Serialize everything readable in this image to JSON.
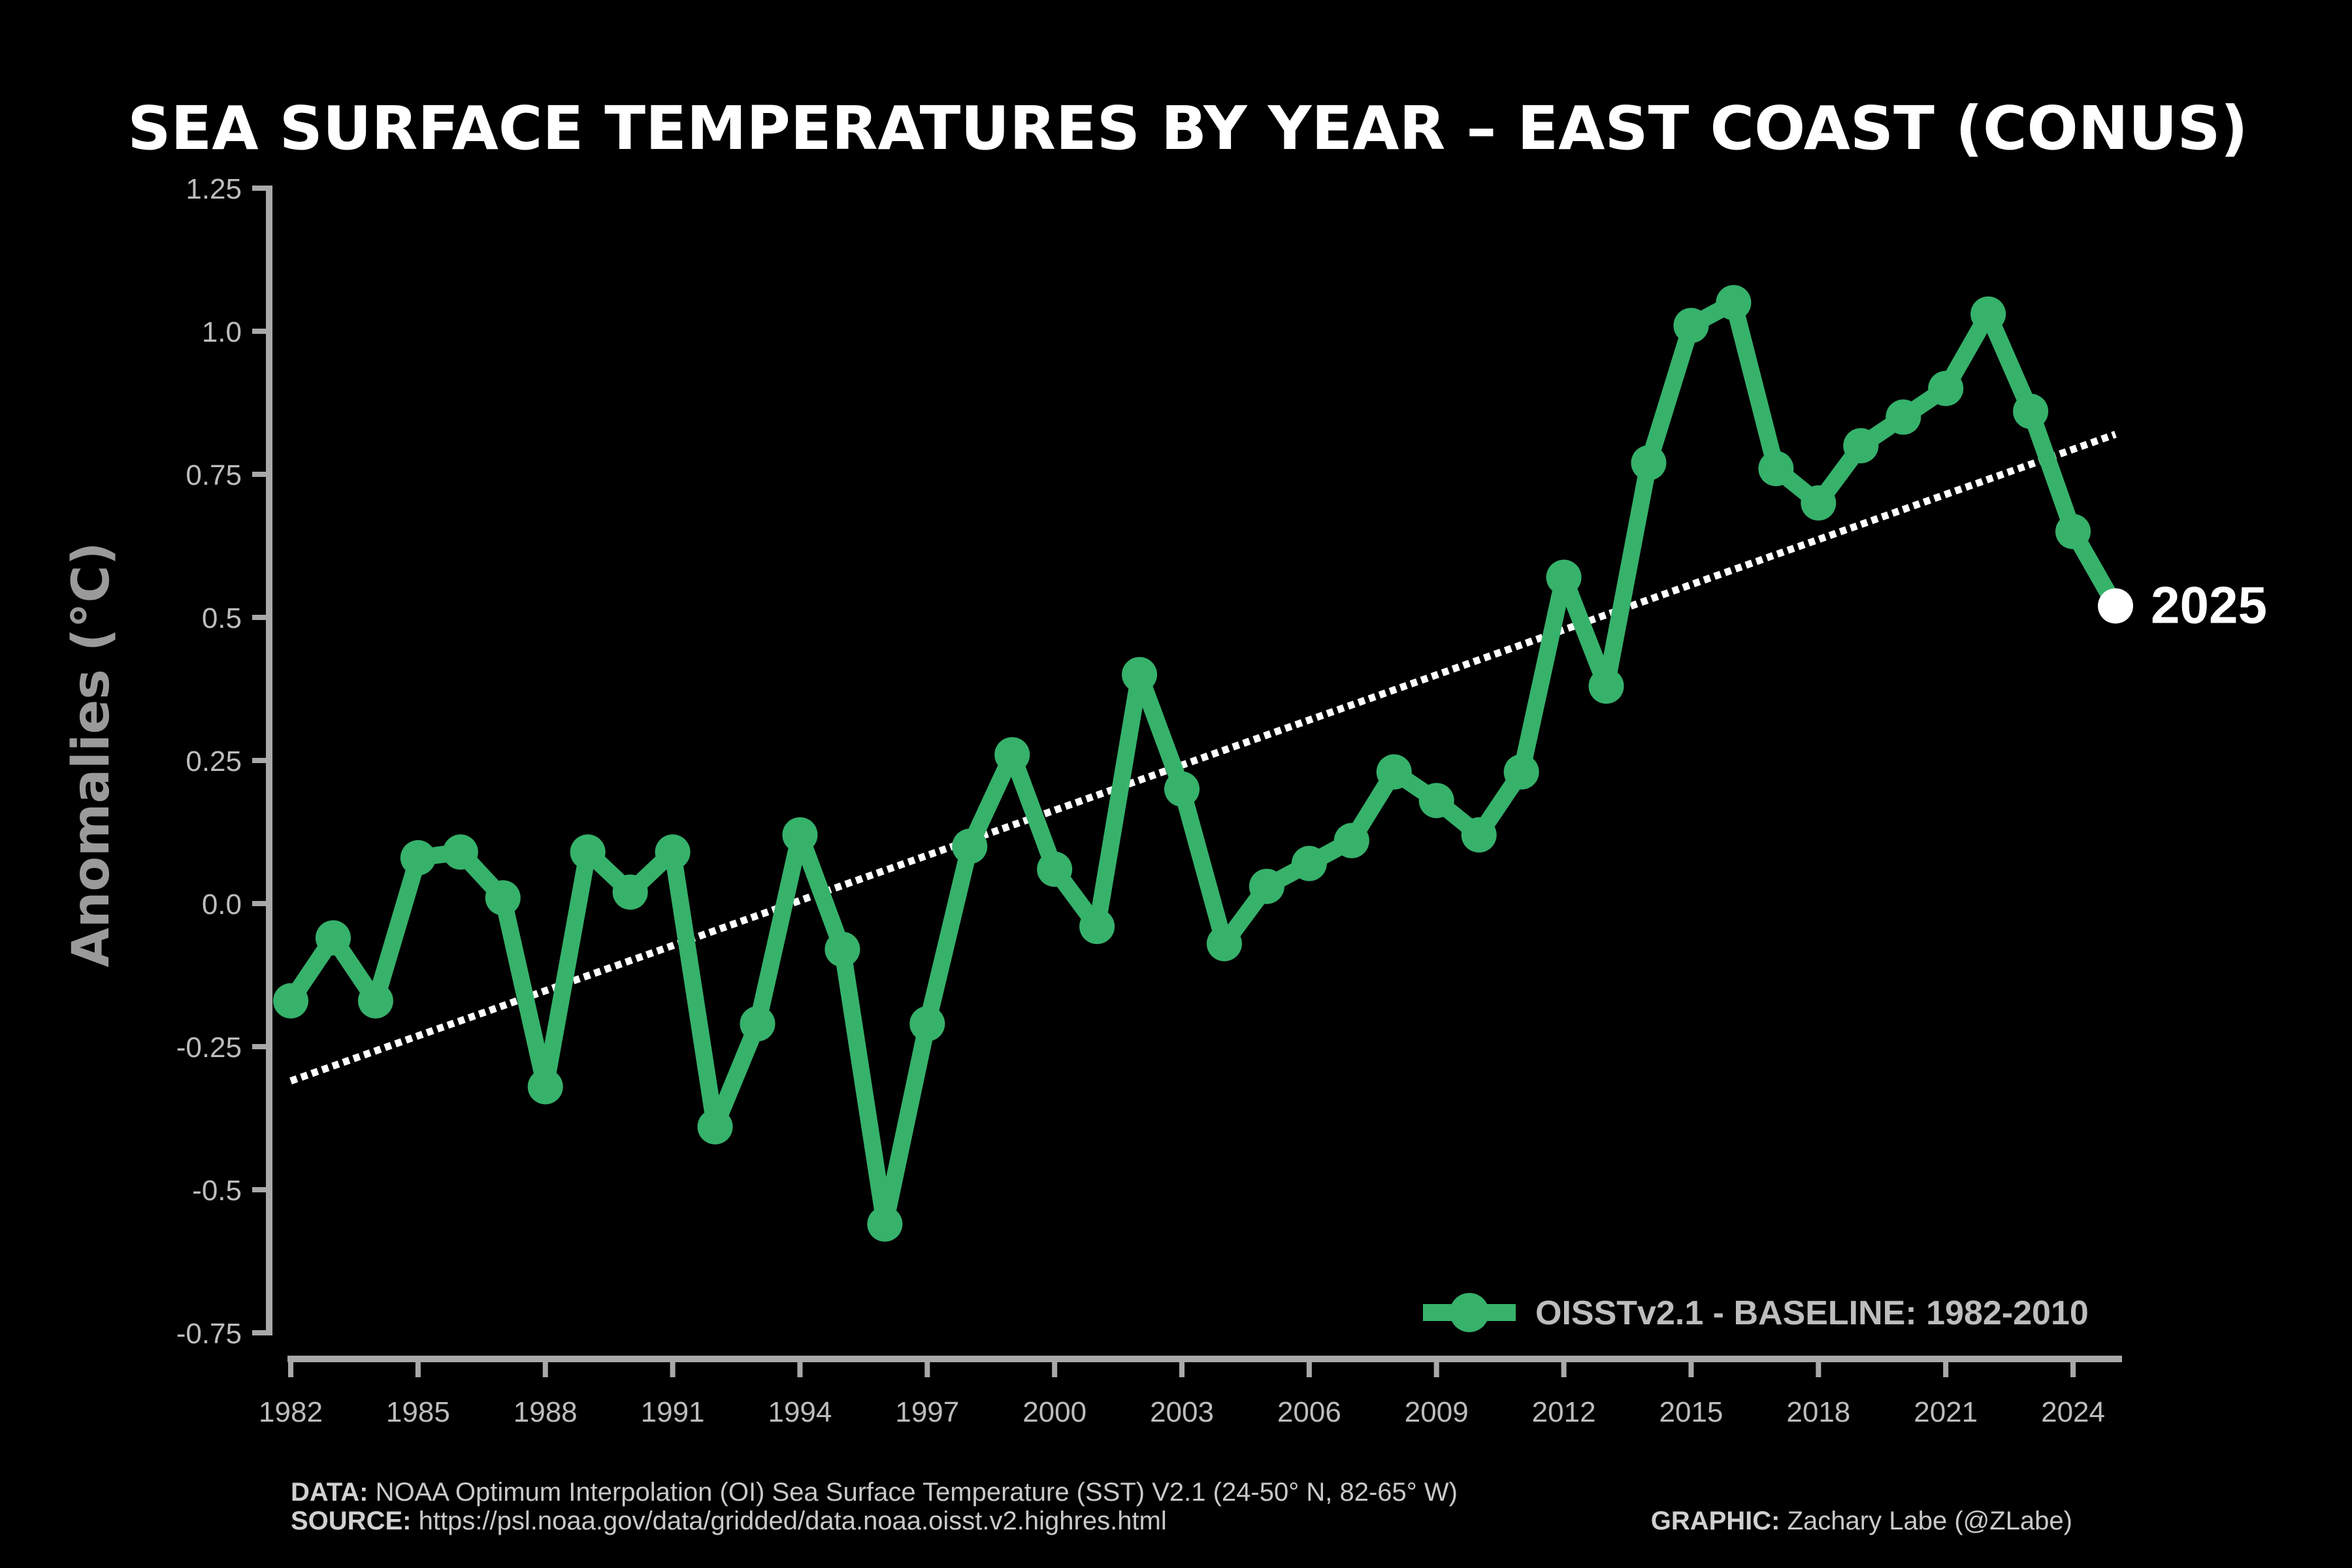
{
  "chart_data": {
    "type": "line",
    "title": "SEA SURFACE TEMPERATURES BY YEAR – EAST COAST (CONUS)",
    "xlabel": "",
    "ylabel": "Anomalies (°C)",
    "ylim": [
      -0.75,
      1.25
    ],
    "xlim": [
      1982,
      2025
    ],
    "y_ticks": [
      "-0.75",
      "-0.5",
      "-0.25",
      "0.0",
      "0.25",
      "0.5",
      "0.75",
      "1.0",
      "1.25"
    ],
    "y_tick_values": [
      -0.75,
      -0.5,
      -0.25,
      0.0,
      0.25,
      0.5,
      0.75,
      1.0,
      1.25
    ],
    "x_ticks": [
      "1982",
      "1985",
      "1988",
      "1991",
      "1994",
      "1997",
      "2000",
      "2003",
      "2006",
      "2009",
      "2012",
      "2015",
      "2018",
      "2021",
      "2024"
    ],
    "x_tick_values": [
      1982,
      1985,
      1988,
      1991,
      1994,
      1997,
      2000,
      2003,
      2006,
      2009,
      2012,
      2015,
      2018,
      2021,
      2024
    ],
    "grid": false,
    "legend_position": "bottom-right",
    "series": [
      {
        "name": "OISSTv2.1 - BASELINE: 1982-2010",
        "color": "#36b26b",
        "x": [
          1982,
          1983,
          1984,
          1985,
          1986,
          1987,
          1988,
          1989,
          1990,
          1991,
          1992,
          1993,
          1994,
          1995,
          1996,
          1997,
          1998,
          1999,
          2000,
          2001,
          2002,
          2003,
          2004,
          2005,
          2006,
          2007,
          2008,
          2009,
          2010,
          2011,
          2012,
          2013,
          2014,
          2015,
          2016,
          2017,
          2018,
          2019,
          2020,
          2021,
          2022,
          2023,
          2024
        ],
        "values": [
          -0.17,
          -0.06,
          -0.17,
          0.08,
          0.09,
          0.01,
          -0.32,
          0.09,
          0.02,
          0.09,
          -0.39,
          -0.21,
          0.12,
          -0.08,
          -0.56,
          -0.21,
          0.1,
          0.26,
          0.06,
          -0.04,
          0.4,
          0.2,
          -0.07,
          0.03,
          0.07,
          0.11,
          0.23,
          0.18,
          0.12,
          0.23,
          0.57,
          0.38,
          0.77,
          1.01,
          1.05,
          0.76,
          0.7,
          0.8,
          0.85,
          0.9,
          1.03,
          0.86,
          0.65
        ]
      },
      {
        "name": "Linear trend",
        "color": "#ffffff",
        "style": "dotted",
        "x": [
          1982,
          2025
        ],
        "values": [
          -0.31,
          0.82
        ]
      }
    ],
    "highlight": {
      "label": "2025",
      "x": 2025,
      "value": 0.52,
      "color": "#ffffff"
    }
  },
  "footer": {
    "data_label": "DATA:",
    "data_text": "NOAA Optimum Interpolation (OI) Sea Surface Temperature (SST) V2.1 (24-50° N, 82-65° W)",
    "source_label": "SOURCE:",
    "source_text": "https://psl.noaa.gov/data/gridded/data.noaa.oisst.v2.highres.html",
    "graphic_label": "GRAPHIC:",
    "graphic_text": "Zachary Labe (@ZLabe)"
  }
}
